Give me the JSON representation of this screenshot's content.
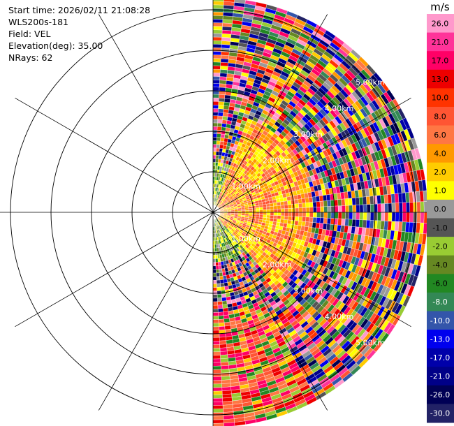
{
  "header": {
    "start_time": "Start time: 2026/02/11 21:08:28",
    "instrument": "WLS200s-181",
    "field": "Field: VEL",
    "elevation": "Elevation(deg): 35.00",
    "nrays": "NRays: 62"
  },
  "chart_data": {
    "type": "heatmap",
    "projection": "polar-ppi",
    "field": "VEL",
    "nrays": 62,
    "azimuth_range_deg": [
      0,
      180
    ],
    "range_rings_km": [
      1,
      2,
      3,
      4,
      5
    ],
    "ring_labels": [
      "1.00km",
      "2.00km",
      "3.00km",
      "4.00km",
      "5.00km"
    ],
    "max_range_km": 5.3,
    "colorbar": {
      "unit": "m/s",
      "tick_labels": [
        "26.0",
        "21.0",
        "17.0",
        "13.0",
        "10.0",
        "8.0",
        "6.0",
        "4.0",
        "2.0",
        "1.0",
        "0.0",
        "-1.0",
        "-2.0",
        "-4.0",
        "-6.0",
        "-8.0",
        "-10.0",
        "-13.0",
        "-17.0",
        "-21.0",
        "-26.0",
        "-30.0"
      ],
      "colors": [
        "#ff99cc",
        "#ff3399",
        "#ff0066",
        "#ee0000",
        "#ff3300",
        "#ff5533",
        "#ff7744",
        "#ff9900",
        "#ffcc00",
        "#ffff00",
        "#999999",
        "#555555",
        "#99cc33",
        "#668822",
        "#228822",
        "#338855",
        "#3355aa",
        "#0000ee",
        "#0000aa",
        "#000088",
        "#000055",
        "#222266"
      ]
    }
  }
}
